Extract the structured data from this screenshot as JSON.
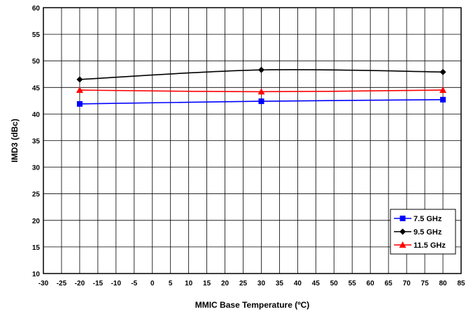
{
  "chart_data": {
    "type": "line",
    "xlabel": "MMIC Base Temperature (ºC)",
    "ylabel": "IMD3 (dBc)",
    "xlim": [
      -30,
      85
    ],
    "ylim": [
      10,
      60
    ],
    "x_ticks": [
      -30,
      -25,
      -20,
      -15,
      -10,
      -5,
      0,
      5,
      10,
      15,
      20,
      25,
      30,
      35,
      40,
      45,
      50,
      55,
      60,
      65,
      70,
      75,
      80,
      85
    ],
    "y_ticks": [
      10,
      15,
      20,
      25,
      30,
      35,
      40,
      45,
      50,
      55,
      60
    ],
    "grid": true,
    "legend_position": "bottom-right",
    "series": [
      {
        "name": "7.5 GHz",
        "color": "#0000ff",
        "marker": "square",
        "x": [
          -20,
          30,
          80
        ],
        "y": [
          41.9,
          42.4,
          42.7
        ]
      },
      {
        "name": "9.5 GHz",
        "color": "#000000",
        "marker": "diamond",
        "x": [
          -20,
          30,
          80
        ],
        "y": [
          46.5,
          48.3,
          47.9
        ]
      },
      {
        "name": "11.5 GHz",
        "color": "#ff0000",
        "marker": "triangle",
        "x": [
          -20,
          30,
          80
        ],
        "y": [
          44.5,
          44.2,
          44.5
        ]
      }
    ]
  }
}
